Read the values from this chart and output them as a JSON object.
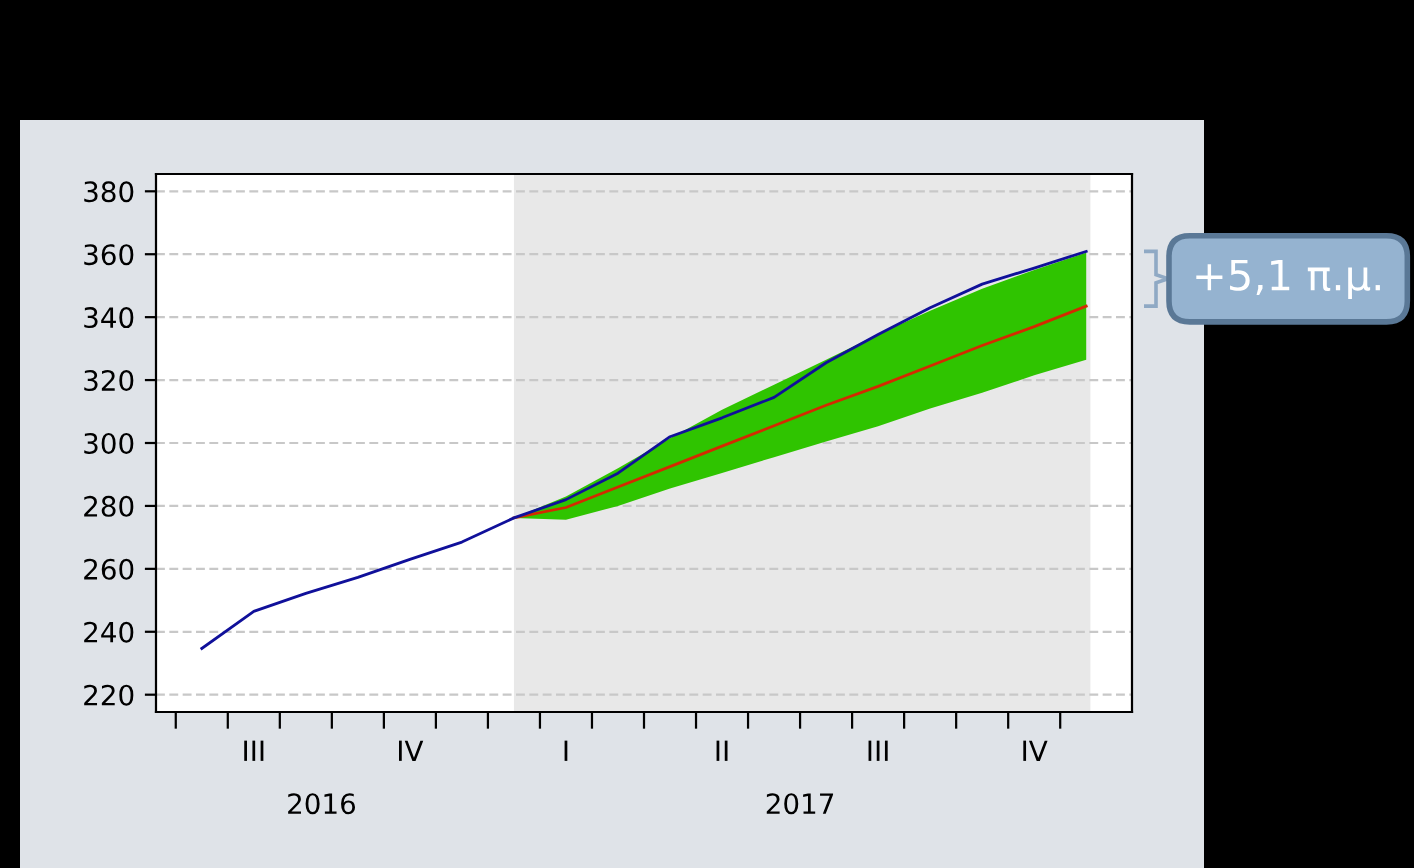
{
  "chart_data": {
    "type": "line",
    "categories": [
      null,
      "III",
      null,
      null,
      "IV",
      null,
      null,
      "I",
      null,
      null,
      "II",
      null,
      null,
      "III",
      null,
      null,
      "IV",
      null
    ],
    "ylim": [
      214.5,
      385.5
    ],
    "yticks": [
      220,
      240,
      260,
      280,
      300,
      320,
      340,
      360,
      380
    ],
    "grid": "y",
    "legend": false,
    "line_style": "solid",
    "marker": "none",
    "series": [
      {
        "color": "#d42a00",
        "values": [
          null,
          null,
          null,
          null,
          null,
          null,
          276.2,
          279.5,
          286,
          292.5,
          299,
          305.5,
          312,
          318,
          324.5,
          331,
          337,
          343.5
        ],
        "lower": [
          null,
          null,
          null,
          null,
          null,
          null,
          276.2,
          275.6,
          280,
          285.5,
          290.5,
          295.5,
          300.5,
          305.3,
          311,
          316,
          321.5,
          326.5
        ],
        "upper": [
          null,
          null,
          null,
          null,
          null,
          null,
          276.2,
          283,
          292,
          301.5,
          310.6,
          318.5,
          326.5,
          334.6,
          342,
          349,
          355,
          360.5
        ]
      },
      {
        "color": "#10109a",
        "values": [
          234.7,
          246.5,
          252.2,
          257.3,
          263,
          268.5,
          276.2,
          282,
          290.4,
          302,
          308,
          314.5,
          325.5,
          334.5,
          343,
          350.5,
          355.6,
          360.9
        ]
      }
    ],
    "annotations": [
      "2016",
      "2017",
      "+5,1 π.μ."
    ]
  }
}
